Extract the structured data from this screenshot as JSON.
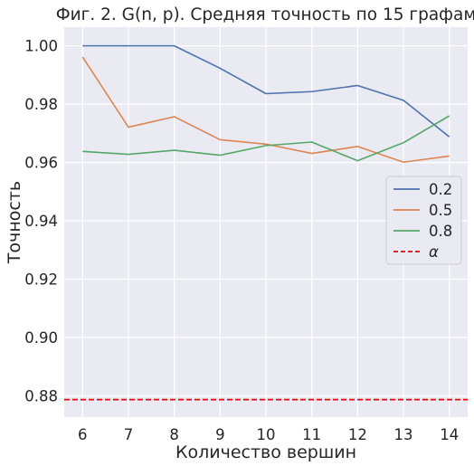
{
  "chart_data": {
    "type": "line",
    "title": "Фиг. 2. G(n, p). Средняя точность по 15 графам",
    "xlabel": "Количество вершин",
    "ylabel": "Точность",
    "x": [
      6,
      7,
      8,
      9,
      10,
      11,
      12,
      13,
      14
    ],
    "x_ticks": [
      "6",
      "7",
      "8",
      "9",
      "10",
      "11",
      "12",
      "13",
      "14"
    ],
    "y_ticks": [
      "0.88",
      "0.90",
      "0.92",
      "0.94",
      "0.96",
      "0.98",
      "1.00"
    ],
    "xlim": [
      5.6,
      14.4
    ],
    "ylim": [
      0.8727,
      1.0064
    ],
    "grid": true,
    "legend_position": "center-right",
    "series": [
      {
        "name": "0.2",
        "color": "#4c72b0",
        "style": "solid",
        "values": [
          1.0,
          1.0,
          1.0,
          0.9923,
          0.9836,
          0.9843,
          0.9864,
          0.9813,
          0.9688
        ]
      },
      {
        "name": "0.5",
        "color": "#dd8452",
        "style": "solid",
        "values": [
          0.9962,
          0.9721,
          0.9757,
          0.9678,
          0.9663,
          0.9631,
          0.9655,
          0.9601,
          0.9622
        ]
      },
      {
        "name": "0.8",
        "color": "#55a868",
        "style": "solid",
        "values": [
          0.9638,
          0.9628,
          0.9642,
          0.9625,
          0.9658,
          0.967,
          0.9606,
          0.9668,
          0.976
        ]
      },
      {
        "name": "α",
        "color": "#e8000b",
        "style": "dashed",
        "constant": 0.8787
      }
    ]
  }
}
